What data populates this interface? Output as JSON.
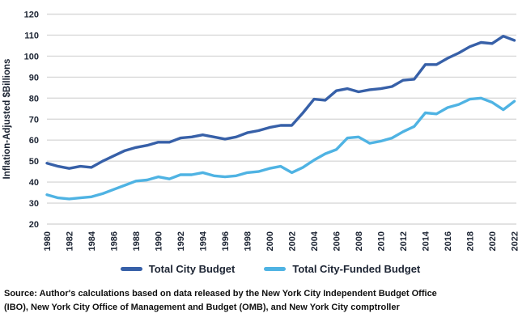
{
  "chart_data": {
    "type": "line",
    "title": "",
    "xlabel": "",
    "ylabel": "Inflation-Adjusted $Billions",
    "ylim": [
      20,
      120
    ],
    "y_ticks": [
      20,
      30,
      40,
      50,
      60,
      70,
      80,
      90,
      100,
      110,
      120
    ],
    "x_ticks": [
      1980,
      1982,
      1984,
      1986,
      1988,
      1990,
      1992,
      1994,
      1996,
      1998,
      2000,
      2002,
      2004,
      2006,
      2008,
      2010,
      2012,
      2014,
      2016,
      2018,
      2020,
      2022
    ],
    "x": [
      1980,
      1981,
      1982,
      1983,
      1984,
      1985,
      1986,
      1987,
      1988,
      1989,
      1990,
      1991,
      1992,
      1993,
      1994,
      1995,
      1996,
      1997,
      1998,
      1999,
      2000,
      2001,
      2002,
      2003,
      2004,
      2005,
      2006,
      2007,
      2008,
      2009,
      2010,
      2011,
      2012,
      2013,
      2014,
      2015,
      2016,
      2017,
      2018,
      2019,
      2020,
      2021,
      2022
    ],
    "series": [
      {
        "name": "Total City Budget",
        "color": "#3760A8",
        "values": [
          49,
          47.5,
          46.5,
          47.5,
          47,
          50,
          52.5,
          55,
          56.5,
          57.5,
          59,
          59,
          61,
          61.5,
          62.5,
          61.5,
          60.5,
          61.5,
          63.5,
          64.5,
          66,
          67,
          67,
          73,
          79.5,
          79,
          83.5,
          84.5,
          83,
          84,
          84.5,
          85.5,
          88.5,
          89,
          96,
          96,
          99,
          101.5,
          104.5,
          106.5,
          106,
          109.5,
          107.5
        ]
      },
      {
        "name": "Total City-Funded Budget",
        "color": "#4FB3E3",
        "values": [
          34,
          32.5,
          32,
          32.5,
          33,
          34.5,
          36.5,
          38.5,
          40.5,
          41,
          42.5,
          41.5,
          43.5,
          43.5,
          44.5,
          43,
          42.5,
          43,
          44.5,
          45,
          46.5,
          47.5,
          44.5,
          47,
          50.5,
          53.5,
          55.5,
          61,
          61.5,
          58.5,
          59.5,
          61,
          64,
          66.5,
          73,
          72.5,
          75.5,
          77,
          79.5,
          80,
          78,
          74.5,
          78.5
        ]
      }
    ],
    "grid": "horizontal",
    "legend_position": "bottom"
  },
  "colors": {
    "gridline": "#d9d9d9",
    "tick_text": "#1c2433",
    "series_dark_blue": "#3760A8",
    "series_light_blue": "#4FB3E3",
    "source_text": "#101010"
  },
  "source": {
    "lines": [
      "Source: Author's calculations based on data released by the New York City Independent Budget Office",
      "(IBO), New York City Office of Management and Budget (OMB), and New York City comptroller"
    ]
  }
}
